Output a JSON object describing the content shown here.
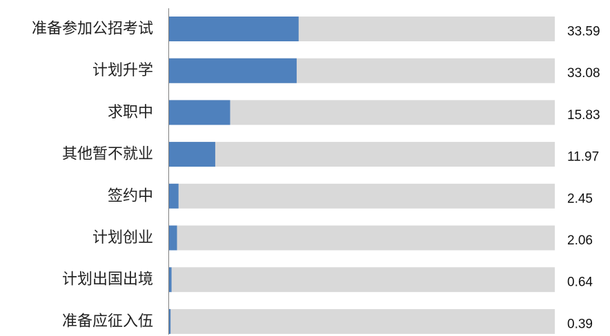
{
  "chart_data": {
    "type": "bar",
    "orientation": "horizontal",
    "categories": [
      "准备参加公招考试",
      "计划升学",
      "求职中",
      "其他暂不就业",
      "签约中",
      "计划创业",
      "计划出国出境",
      "准备应征入伍"
    ],
    "values": [
      33.59,
      33.08,
      15.83,
      11.97,
      2.45,
      2.06,
      0.64,
      0.39
    ],
    "value_labels": [
      "33.59",
      "33.08",
      "15.83",
      "11.97",
      "2.45",
      "2.06",
      "0.64",
      "0.39"
    ],
    "xlim": [
      0,
      100
    ],
    "colors": {
      "bar": "#4F81BD",
      "track": "#D9D9D9",
      "axis": "#808080"
    },
    "grid": false,
    "legend": "none",
    "title": "",
    "xlabel": "",
    "ylabel": ""
  }
}
